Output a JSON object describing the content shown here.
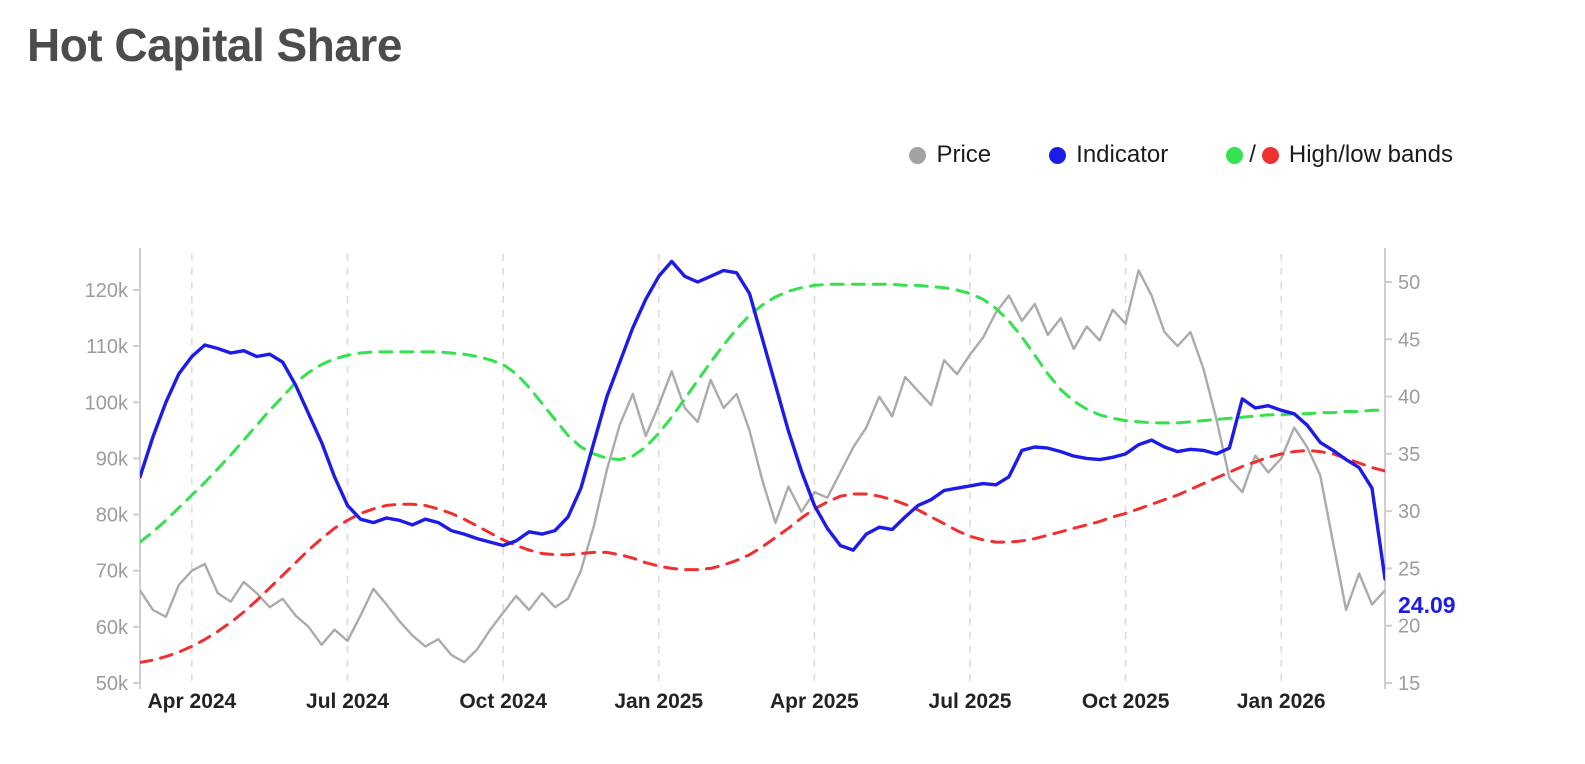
{
  "page": {
    "title": "Hot Capital Share"
  },
  "legend": {
    "price_label": "Price",
    "indicator_label": "Indicator",
    "bands_label": "High/low bands",
    "bands_separator": "/",
    "price_color": "#a2a2a2",
    "indicator_color": "#1d1be8",
    "high_color": "#35e14f",
    "low_color": "#ee3130"
  },
  "chart_data": {
    "type": "line",
    "title": "Hot Capital Share",
    "x_start": 0,
    "x_end": 24,
    "x_step": 0.25,
    "x_unit": "months since Mar 2024",
    "grid": {
      "vertical_dashed": true,
      "horizontal": false
    },
    "legend_position": "top-right",
    "x_ticks": [
      {
        "pos": 1,
        "label": "Apr 2024"
      },
      {
        "pos": 4,
        "label": "Jul 2024"
      },
      {
        "pos": 7,
        "label": "Oct 2024"
      },
      {
        "pos": 10,
        "label": "Jan 2025"
      },
      {
        "pos": 13,
        "label": "Apr 2025"
      },
      {
        "pos": 16,
        "label": "Jul 2025"
      },
      {
        "pos": 19,
        "label": "Oct 2025"
      },
      {
        "pos": 22,
        "label": "Jan 2026"
      }
    ],
    "left_axis": {
      "series": "Price",
      "ticks": [
        {
          "v": 50,
          "label": "50k"
        },
        {
          "v": 60,
          "label": "60k"
        },
        {
          "v": 70,
          "label": "70k"
        },
        {
          "v": 80,
          "label": "80k"
        },
        {
          "v": 90,
          "label": "90k"
        },
        {
          "v": 100,
          "label": "100k"
        },
        {
          "v": 110,
          "label": "110k"
        },
        {
          "v": 120,
          "label": "120k"
        }
      ]
    },
    "right_axis": {
      "series": "Indicator / bands",
      "ticks": [
        {
          "v": 15,
          "label": "15"
        },
        {
          "v": 20,
          "label": "20"
        },
        {
          "v": 25,
          "label": "25"
        },
        {
          "v": 30,
          "label": "30"
        },
        {
          "v": 35,
          "label": "35"
        },
        {
          "v": 40,
          "label": "40"
        },
        {
          "v": 45,
          "label": "45"
        },
        {
          "v": 50,
          "label": "50"
        }
      ]
    },
    "last_value_label": {
      "text": "24.09",
      "value": 24.09,
      "color": "#1d1be8"
    },
    "series": [
      {
        "name": "Price",
        "axis": "left",
        "unit": "k",
        "color": "#ababab",
        "style": "solid",
        "width": 2.4,
        "z": 1,
        "values": [
          66.5,
          63.0,
          61.8,
          67.5,
          70.0,
          71.2,
          66.0,
          64.5,
          68.0,
          66.0,
          63.5,
          65.0,
          62.0,
          60.0,
          56.8,
          59.5,
          57.5,
          62.0,
          66.8,
          64.0,
          61.0,
          58.5,
          56.5,
          57.8,
          55.0,
          53.7,
          56.0,
          59.5,
          62.5,
          65.5,
          63.0,
          66.0,
          63.5,
          65.0,
          70.0,
          78.0,
          88.0,
          96.0,
          101.5,
          94.0,
          99.5,
          105.5,
          99.0,
          96.5,
          104.0,
          99.0,
          101.5,
          95.0,
          86.0,
          78.5,
          85.0,
          80.5,
          84.0,
          83.0,
          87.5,
          92.0,
          95.5,
          101.0,
          97.5,
          104.5,
          102.0,
          99.5,
          107.5,
          105.0,
          108.5,
          111.5,
          116.0,
          119.0,
          114.5,
          117.5,
          112.0,
          115.0,
          109.5,
          113.5,
          111.0,
          116.5,
          114.0,
          123.5,
          119.0,
          112.5,
          110.0,
          112.5,
          106.0,
          97.0,
          86.5,
          84.0,
          90.5,
          87.5,
          90.0,
          95.5,
          92.0,
          87.0,
          75.0,
          63.0,
          69.5,
          64.0,
          66.5
        ]
      },
      {
        "name": "Low band",
        "axis": "right",
        "color": "#ee3130",
        "style": "dashed",
        "width": 3,
        "z": 2,
        "values": [
          16.8,
          17.0,
          17.3,
          17.7,
          18.2,
          18.8,
          19.5,
          20.3,
          21.2,
          22.2,
          23.3,
          24.4,
          25.5,
          26.6,
          27.6,
          28.5,
          29.2,
          29.8,
          30.2,
          30.5,
          30.6,
          30.6,
          30.5,
          30.2,
          29.8,
          29.3,
          28.7,
          28.1,
          27.5,
          27.0,
          26.6,
          26.3,
          26.2,
          26.2,
          26.3,
          26.4,
          26.4,
          26.2,
          25.9,
          25.5,
          25.2,
          25.0,
          24.9,
          24.9,
          25.0,
          25.3,
          25.7,
          26.2,
          26.9,
          27.7,
          28.5,
          29.4,
          30.2,
          30.8,
          31.3,
          31.5,
          31.5,
          31.3,
          31.0,
          30.6,
          30.1,
          29.5,
          28.9,
          28.3,
          27.8,
          27.5,
          27.3,
          27.3,
          27.4,
          27.6,
          27.9,
          28.2,
          28.5,
          28.8,
          29.1,
          29.5,
          29.8,
          30.2,
          30.6,
          31.0,
          31.4,
          31.9,
          32.4,
          32.9,
          33.4,
          33.9,
          34.3,
          34.7,
          35.0,
          35.2,
          35.3,
          35.2,
          35.0,
          34.6,
          34.2,
          33.8,
          33.5
        ]
      },
      {
        "name": "High band",
        "axis": "right",
        "color": "#35e14f",
        "style": "dashed",
        "width": 3,
        "z": 3,
        "values": [
          27.3,
          28.2,
          29.2,
          30.3,
          31.4,
          32.5,
          33.7,
          34.9,
          36.2,
          37.5,
          38.8,
          40.0,
          41.2,
          42.1,
          42.8,
          43.3,
          43.6,
          43.8,
          43.9,
          43.9,
          43.9,
          43.9,
          43.9,
          43.9,
          43.8,
          43.7,
          43.5,
          43.2,
          42.8,
          42.0,
          40.8,
          39.4,
          38.0,
          36.6,
          35.6,
          35.0,
          34.6,
          34.5,
          34.8,
          35.6,
          36.8,
          38.2,
          39.8,
          41.4,
          43.0,
          44.5,
          45.9,
          47.1,
          48.0,
          48.7,
          49.2,
          49.5,
          49.7,
          49.8,
          49.8,
          49.8,
          49.8,
          49.8,
          49.8,
          49.7,
          49.7,
          49.6,
          49.5,
          49.3,
          49.0,
          48.5,
          47.7,
          46.6,
          45.2,
          43.6,
          42.0,
          40.6,
          39.6,
          38.9,
          38.4,
          38.1,
          37.9,
          37.8,
          37.7,
          37.7,
          37.7,
          37.8,
          37.9,
          38.0,
          38.1,
          38.2,
          38.3,
          38.4,
          38.4,
          38.5,
          38.5,
          38.6,
          38.6,
          38.7,
          38.7,
          38.8,
          38.8
        ]
      },
      {
        "name": "Indicator",
        "axis": "right",
        "color": "#1d1be8",
        "style": "solid",
        "width": 3.4,
        "z": 4,
        "values": [
          33.0,
          36.5,
          39.5,
          42.0,
          43.5,
          44.5,
          44.2,
          43.8,
          44.0,
          43.5,
          43.7,
          43.0,
          41.0,
          38.5,
          36.0,
          33.0,
          30.5,
          29.3,
          29.0,
          29.4,
          29.2,
          28.8,
          29.3,
          29.0,
          28.3,
          28.0,
          27.6,
          27.3,
          27.0,
          27.4,
          28.2,
          28.0,
          28.3,
          29.5,
          32.0,
          36.0,
          40.0,
          43.0,
          46.0,
          48.5,
          50.5,
          51.8,
          50.5,
          50.0,
          50.5,
          51.0,
          50.8,
          49.0,
          45.0,
          41.0,
          37.0,
          33.5,
          30.5,
          28.5,
          27.0,
          26.6,
          28.0,
          28.6,
          28.4,
          29.5,
          30.5,
          31.0,
          31.8,
          32.0,
          32.2,
          32.4,
          32.3,
          33.0,
          35.3,
          35.6,
          35.5,
          35.2,
          34.8,
          34.6,
          34.5,
          34.7,
          35.0,
          35.8,
          36.2,
          35.6,
          35.2,
          35.4,
          35.3,
          35.0,
          35.5,
          39.8,
          39.0,
          39.2,
          38.8,
          38.5,
          37.5,
          36.0,
          35.3,
          34.5,
          33.8,
          32.0,
          24.09
        ]
      }
    ]
  }
}
